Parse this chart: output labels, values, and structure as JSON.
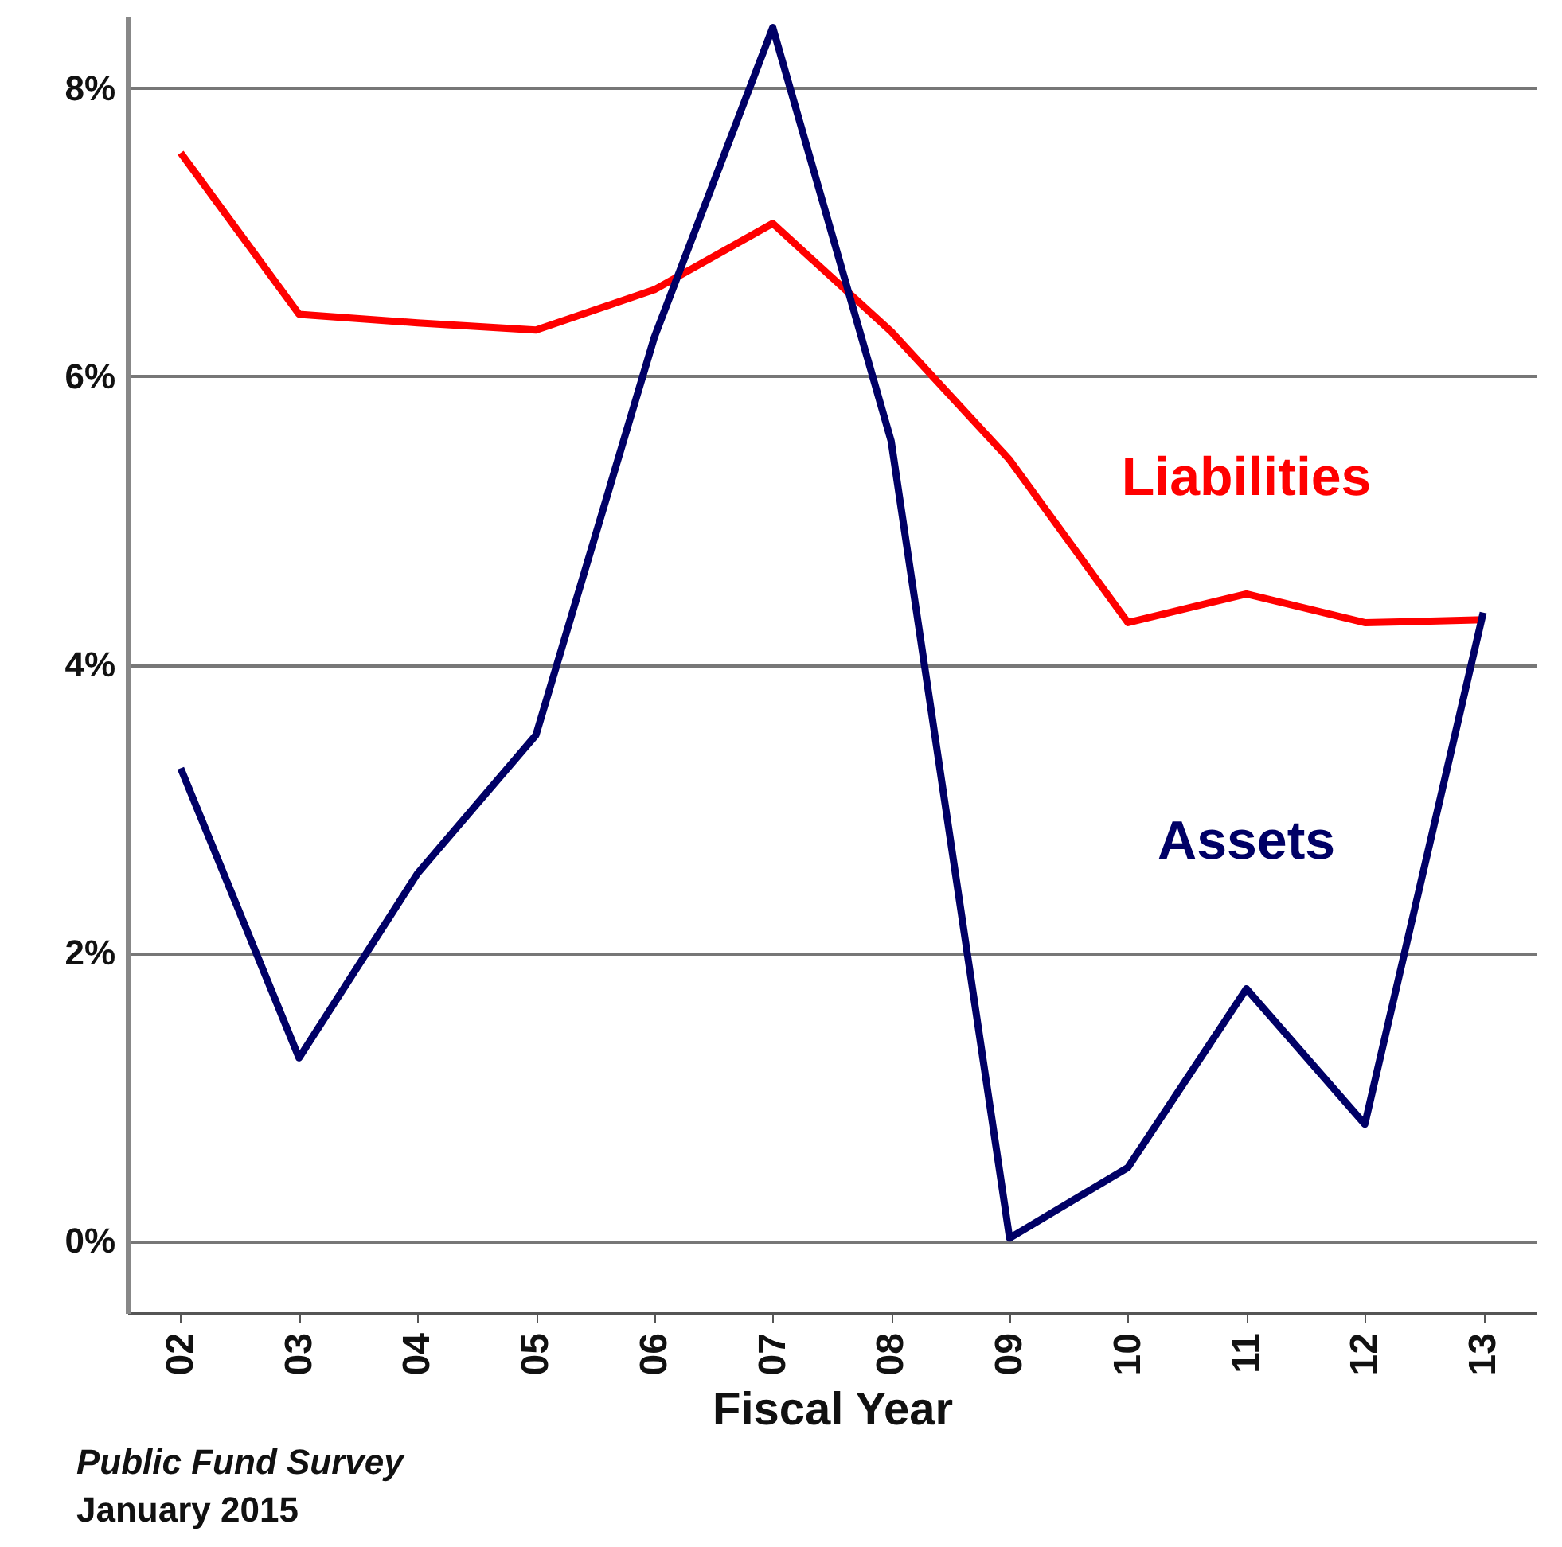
{
  "chart_data": {
    "type": "line",
    "xlabel": "Fiscal Year",
    "categories": [
      "02",
      "03",
      "04",
      "05",
      "06",
      "07",
      "08",
      "09",
      "10",
      "11",
      "12",
      "13"
    ],
    "series": [
      {
        "name": "Liabilities",
        "color": "#ff0000",
        "values": [
          7.55,
          6.43,
          6.37,
          6.32,
          6.6,
          7.06,
          6.31,
          5.42,
          4.29,
          4.49,
          4.29,
          4.31
        ]
      },
      {
        "name": "Assets",
        "color": "#000066",
        "values": [
          3.28,
          1.27,
          2.55,
          3.51,
          6.27,
          8.42,
          5.55,
          0.02,
          0.51,
          1.75,
          0.81,
          4.36
        ]
      }
    ],
    "ylim": [
      -0.5,
      8.5
    ],
    "yticks": [
      {
        "value": 0,
        "label": "0%"
      },
      {
        "value": 2,
        "label": "2%"
      },
      {
        "value": 4,
        "label": "4%"
      },
      {
        "value": 6,
        "label": "6%"
      },
      {
        "value": 8,
        "label": "8%"
      }
    ],
    "grid": "y",
    "legend": false,
    "marker": "none",
    "line_style": "solid",
    "annotations": [
      "Public Fund Survey",
      "January 2015"
    ]
  }
}
